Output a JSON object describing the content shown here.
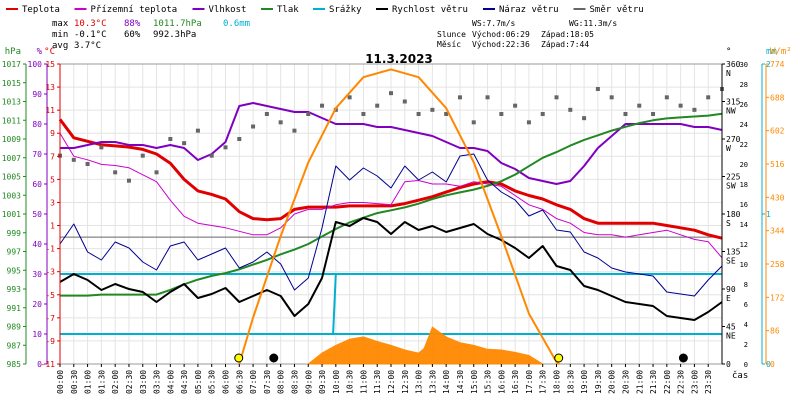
{
  "legend": [
    {
      "label": "Teplota",
      "color": "#e00000"
    },
    {
      "label": "Přízemní teplota",
      "color": "#cc00cc"
    },
    {
      "label": "Vlhkost",
      "color": "#8000c0"
    },
    {
      "label": "Tlak",
      "color": "#228822"
    },
    {
      "label": "Srážky",
      "color": "#00b0d0"
    },
    {
      "label": "Rychlost větru",
      "color": "#000000"
    },
    {
      "label": "Náraz větru",
      "color": "#000090"
    },
    {
      "label": "Směr větru",
      "color": "#666666"
    }
  ],
  "stats": {
    "max_label": "max",
    "max_temp": "10.3°C",
    "max_hum": "88%",
    "max_press": "1011.7hPa",
    "max_rain": "0.6mm",
    "min_label": "min",
    "min_temp": "-0.1°C",
    "min_hum": "60%",
    "min_press": "992.3hPa",
    "avg_label": "avg",
    "avg_temp": "3.7°C"
  },
  "wind_info": {
    "ws": "WS:7.7m/s",
    "wg": "WG:11.3m/s"
  },
  "sun_info": {
    "label": "Slunce",
    "rise": "Východ:06:29",
    "set": "Západ:18:05"
  },
  "moon_info": {
    "label": "Měsíc",
    "rise": "Východ:22:36",
    "set": "Západ:7:44"
  },
  "chart_data": {
    "type": "line",
    "title": "11.3.2023",
    "xlabel": "čas",
    "x_ticks": [
      "00:00",
      "00:30",
      "01:00",
      "01:30",
      "02:00",
      "02:30",
      "03:00",
      "03:30",
      "04:00",
      "04:30",
      "05:00",
      "05:30",
      "06:00",
      "06:30",
      "07:00",
      "07:30",
      "08:00",
      "08:30",
      "09:00",
      "09:30",
      "10:00",
      "10:30",
      "11:00",
      "11:30",
      "12:00",
      "12:30",
      "13:00",
      "13:30",
      "14:00",
      "14:30",
      "15:00",
      "15:30",
      "16:00",
      "16:30",
      "17:00",
      "17:30",
      "18:00",
      "18:30",
      "19:00",
      "19:30",
      "20:00",
      "20:30",
      "21:00",
      "21:30",
      "22:00",
      "22:30",
      "23:00",
      "23:30"
    ],
    "axes": {
      "hpa": {
        "label": "hPa",
        "ticks": [
          "985",
          "987",
          "989",
          "991",
          "993",
          "995",
          "997",
          "999",
          "1001",
          "1003",
          "1005",
          "1007",
          "1009",
          "1011",
          "1013",
          "1015",
          "1017"
        ],
        "color": "#228822"
      },
      "pct": {
        "label": "%",
        "ticks": [
          "0",
          "10",
          "20",
          "30",
          "40",
          "50",
          "60",
          "70",
          "80",
          "90",
          "100"
        ],
        "color": "#8000c0"
      },
      "temp": {
        "label": "°C",
        "ticks": [
          "-11",
          "-9",
          "-7",
          "-5",
          "-3",
          "-1",
          "1",
          "3",
          "5",
          "7",
          "9",
          "11",
          "13",
          "15"
        ],
        "color": "#e00000"
      },
      "ms": {
        "label": "m/s",
        "ticks": [
          "0",
          "2",
          "4",
          "6",
          "8",
          "10",
          "12",
          "14",
          "16",
          "18",
          "20",
          "22",
          "24",
          "26",
          "28",
          "30"
        ]
      },
      "deg": {
        "label": "°",
        "ticks": [
          "0",
          "45",
          "90",
          "135",
          "180",
          "225",
          "270",
          "315",
          "360"
        ],
        "names": [
          "",
          "NE",
          "E",
          "SE",
          "S",
          "SW",
          "W",
          "NW",
          "N"
        ]
      },
      "mm": {
        "label": "mm",
        "ticks": [
          "0",
          "1",
          "2"
        ],
        "color": "#00b0d0"
      },
      "wm2": {
        "label": "W/m²",
        "ticks": [
          "0",
          "86",
          "172",
          "258",
          "344",
          "430",
          "516",
          "602",
          "688",
          "774"
        ],
        "color": "#ff8800"
      }
    },
    "series": [
      {
        "name": "Teplota",
        "unit": "°C",
        "color": "#e00000",
        "x": [
          0,
          0.5,
          1,
          1.5,
          2,
          2.5,
          3,
          3.5,
          4,
          4.5,
          5,
          5.5,
          6,
          6.5,
          7,
          7.5,
          8,
          8.5,
          9,
          9.5,
          10,
          10.5,
          11,
          11.5,
          12,
          12.5,
          13,
          13.5,
          14,
          14.5,
          15,
          15.5,
          16,
          16.5,
          17,
          17.5,
          18,
          18.5,
          19,
          19.5,
          20,
          20.5,
          21,
          21.5,
          22,
          22.5,
          23,
          23.5,
          24
        ],
        "values": [
          10.2,
          8.6,
          8.3,
          8.0,
          7.9,
          7.8,
          7.6,
          7.2,
          6.4,
          5.0,
          4.0,
          3.7,
          3.3,
          2.2,
          1.6,
          1.5,
          1.6,
          2.4,
          2.6,
          2.6,
          2.6,
          2.7,
          2.7,
          2.7,
          2.7,
          2.9,
          3.2,
          3.5,
          3.9,
          4.3,
          4.6,
          4.8,
          4.6,
          4.0,
          3.6,
          3.3,
          2.8,
          2.4,
          1.6,
          1.2,
          1.2,
          1.2,
          1.2,
          1.2,
          1.0,
          0.8,
          0.6,
          0.2,
          -0.1
        ]
      },
      {
        "name": "Přízemní teplota",
        "unit": "°C",
        "color": "#cc00cc",
        "x": [
          0,
          0.5,
          1,
          1.5,
          2,
          2.5,
          3,
          3.5,
          4,
          4.5,
          5,
          5.5,
          6,
          6.5,
          7,
          7.5,
          8,
          8.5,
          9,
          9.5,
          10,
          10.5,
          11,
          11.5,
          12,
          12.5,
          13,
          13.5,
          14,
          14.5,
          15,
          15.5,
          16,
          16.5,
          17,
          17.5,
          18,
          18.5,
          19,
          19.5,
          20,
          20.5,
          21,
          21.5,
          22,
          22.5,
          23,
          23.5,
          24
        ],
        "values": [
          9.0,
          7.0,
          6.7,
          6.3,
          6.2,
          6.0,
          5.4,
          4.8,
          3.2,
          1.8,
          1.2,
          1.0,
          0.8,
          0.5,
          0.2,
          0.2,
          0.8,
          2.0,
          2.4,
          2.4,
          2.8,
          3.0,
          3.0,
          2.9,
          2.8,
          4.8,
          4.9,
          4.6,
          4.6,
          4.4,
          4.8,
          4.6,
          4.4,
          3.6,
          2.8,
          2.4,
          1.6,
          1.2,
          0.4,
          0.2,
          0.2,
          0.0,
          0.2,
          0.4,
          0.6,
          0.2,
          -0.2,
          -0.4,
          -1.8
        ]
      },
      {
        "name": "Vlhkost",
        "unit": "%",
        "color": "#8000c0",
        "x": [
          0,
          0.5,
          1,
          1.5,
          2,
          2.5,
          3,
          3.5,
          4,
          4.5,
          5,
          5.5,
          6,
          6.5,
          7,
          7.5,
          8,
          8.5,
          9,
          9.5,
          10,
          10.5,
          11,
          11.5,
          12,
          12.5,
          13,
          13.5,
          14,
          14.5,
          15,
          15.5,
          16,
          16.5,
          17,
          17.5,
          18,
          18.5,
          19,
          19.5,
          20,
          20.5,
          21,
          21.5,
          22,
          22.5,
          23,
          23.5,
          24
        ],
        "values": [
          72,
          72,
          73,
          74,
          74,
          73,
          73,
          72,
          73,
          72,
          68,
          70,
          74,
          86,
          87,
          86,
          85,
          84,
          84,
          82,
          80,
          80,
          80,
          79,
          79,
          78,
          77,
          76,
          74,
          72,
          72,
          71,
          67,
          65,
          62,
          61,
          60,
          61,
          66,
          72,
          76,
          80,
          80,
          80,
          80,
          80,
          79,
          79,
          78
        ]
      },
      {
        "name": "Tlak",
        "unit": "hPa",
        "color": "#228822",
        "x": [
          0,
          0.5,
          1,
          1.5,
          2,
          2.5,
          3,
          3.5,
          4,
          4.5,
          5,
          5.5,
          6,
          6.5,
          7,
          7.5,
          8,
          8.5,
          9,
          9.5,
          10,
          10.5,
          11,
          11.5,
          12,
          12.5,
          13,
          13.5,
          14,
          14.5,
          15,
          15.5,
          16,
          16.5,
          17,
          17.5,
          18,
          18.5,
          19,
          19.5,
          20,
          20.5,
          21,
          21.5,
          22,
          22.5,
          23,
          23.5,
          24
        ],
        "values": [
          992.3,
          992.3,
          992.3,
          992.4,
          992.4,
          992.4,
          992.4,
          992.4,
          992.9,
          993.5,
          994.0,
          994.4,
          994.7,
          995.1,
          995.6,
          996.1,
          996.7,
          997.2,
          997.8,
          998.6,
          999.4,
          1000.1,
          1000.6,
          1001.1,
          1001.4,
          1001.7,
          1002.1,
          1002.6,
          1003.0,
          1003.3,
          1003.6,
          1004.0,
          1004.5,
          1005.2,
          1006.1,
          1007.0,
          1007.6,
          1008.3,
          1008.9,
          1009.4,
          1009.9,
          1010.3,
          1010.7,
          1011.0,
          1011.2,
          1011.3,
          1011.4,
          1011.5,
          1011.7
        ]
      },
      {
        "name": "Srážky",
        "unit": "mm",
        "color": "#00b0d0",
        "x": [
          0,
          9.9,
          10,
          24
        ],
        "values": [
          0.2,
          0.2,
          0.6,
          0.6
        ]
      },
      {
        "name": "Rychlost větru",
        "unit": "m/s",
        "color": "#000000",
        "x": [
          0,
          0.5,
          1,
          1.5,
          2,
          2.5,
          3,
          3.5,
          4,
          4.5,
          5,
          5.5,
          6,
          6.5,
          7,
          7.5,
          8,
          8.5,
          9,
          9.5,
          10,
          10.5,
          11,
          11.5,
          12,
          12.5,
          13,
          13.5,
          14,
          14.5,
          15,
          15.5,
          16,
          16.5,
          17,
          17.5,
          18,
          18.5,
          19,
          19.5,
          20,
          20.5,
          21,
          21.5,
          22,
          22.5,
          23,
          23.5,
          24
        ],
        "values": [
          8.2,
          9.0,
          8.4,
          7.4,
          8.0,
          7.5,
          7.2,
          6.2,
          7.2,
          8.0,
          6.6,
          7.0,
          7.6,
          6.2,
          6.8,
          7.4,
          6.8,
          4.8,
          6.0,
          8.6,
          14.2,
          13.8,
          14.6,
          14.2,
          13.0,
          14.2,
          13.4,
          13.8,
          13.2,
          13.6,
          14.0,
          13.0,
          12.4,
          11.6,
          10.6,
          11.8,
          9.8,
          9.4,
          7.8,
          7.4,
          6.8,
          6.2,
          6.0,
          5.8,
          4.8,
          4.6,
          4.4,
          5.2,
          6.2
        ]
      },
      {
        "name": "Náraz větru",
        "unit": "m/s",
        "color": "#000090",
        "x": [
          0,
          0.5,
          1,
          1.5,
          2,
          2.5,
          3,
          3.5,
          4,
          4.5,
          5,
          5.5,
          6,
          6.5,
          7,
          7.5,
          8,
          8.5,
          9,
          9.5,
          10,
          10.5,
          11,
          11.5,
          12,
          12.5,
          13,
          13.5,
          14,
          14.5,
          15,
          15.5,
          16,
          16.5,
          17,
          17.5,
          18,
          18.5,
          19,
          19.5,
          20,
          20.5,
          21,
          21.5,
          22,
          22.5,
          23,
          23.5,
          24
        ],
        "values": [
          12.0,
          14.0,
          11.2,
          10.4,
          12.2,
          11.6,
          10.2,
          9.4,
          11.8,
          12.2,
          10.4,
          11.0,
          11.6,
          9.6,
          10.2,
          11.2,
          10.0,
          7.4,
          8.6,
          13.6,
          19.8,
          18.4,
          19.6,
          18.8,
          17.6,
          19.8,
          18.4,
          19.2,
          18.2,
          20.8,
          21.0,
          18.4,
          17.2,
          16.4,
          14.8,
          15.4,
          13.4,
          13.2,
          11.2,
          10.6,
          9.6,
          9.2,
          9.0,
          8.8,
          7.2,
          7.0,
          6.8,
          8.4,
          9.8
        ]
      },
      {
        "name": "Směr větru",
        "unit": "°",
        "color": "#666666",
        "x": [
          0,
          0.5,
          1,
          1.5,
          2,
          2.5,
          3,
          3.5,
          4,
          4.5,
          5,
          5.5,
          6,
          6.5,
          7,
          7.5,
          8,
          8.5,
          9,
          9.5,
          10,
          10.5,
          11,
          11.5,
          12,
          12.5,
          13,
          13.5,
          14,
          14.5,
          15,
          15.5,
          16,
          16.5,
          17,
          17.5,
          18,
          18.5,
          19,
          19.5,
          20,
          20.5,
          21,
          21.5,
          22,
          22.5,
          23,
          23.5,
          24
        ],
        "values": [
          250,
          245,
          240,
          260,
          230,
          220,
          250,
          230,
          270,
          265,
          280,
          250,
          260,
          270,
          285,
          300,
          290,
          280,
          300,
          310,
          305,
          320,
          300,
          310,
          325,
          315,
          300,
          305,
          300,
          320,
          290,
          320,
          300,
          310,
          290,
          300,
          320,
          305,
          295,
          330,
          320,
          300,
          310,
          300,
          320,
          310,
          305,
          320,
          330
        ]
      },
      {
        "name": "Sluneční svit",
        "unit": "W/m²",
        "color": "#ff8800",
        "x": [
          6.5,
          7,
          8,
          9,
          10,
          11,
          12,
          13,
          14,
          15,
          16,
          17,
          18,
          18.1
        ],
        "values": [
          0,
          120,
          330,
          520,
          660,
          740,
          760,
          740,
          660,
          520,
          330,
          130,
          5,
          0
        ]
      },
      {
        "name": "Sluneční záření",
        "unit": "W/m²",
        "color": "#ff8800",
        "x": [
          9,
          9.5,
          10,
          10.5,
          11,
          11.5,
          12,
          12.5,
          13,
          13.2,
          13.5,
          14,
          14.5,
          15,
          15.5,
          16,
          16.5,
          17,
          17.5
        ],
        "values": [
          0,
          28,
          48,
          64,
          70,
          58,
          48,
          36,
          28,
          40,
          95,
          70,
          55,
          48,
          38,
          36,
          30,
          22,
          0
        ]
      }
    ],
    "hlines": [
      {
        "axis": "temp",
        "value": 0,
        "color": "#666666"
      },
      {
        "axis": "mm",
        "value": 0.2,
        "color": "#00b0d0"
      },
      {
        "axis": "mm",
        "value": 0.6,
        "color": "#00b0d0"
      }
    ],
    "markers": [
      {
        "x": 6.48,
        "type": "sunrise",
        "color": "#ffff00"
      },
      {
        "x": 7.75,
        "type": "moonset",
        "color": "#000000"
      },
      {
        "x": 18.08,
        "type": "sunset",
        "color": "#ffff00"
      },
      {
        "x": 22.6,
        "type": "moonrise",
        "color": "#000000"
      }
    ],
    "grid": true
  }
}
